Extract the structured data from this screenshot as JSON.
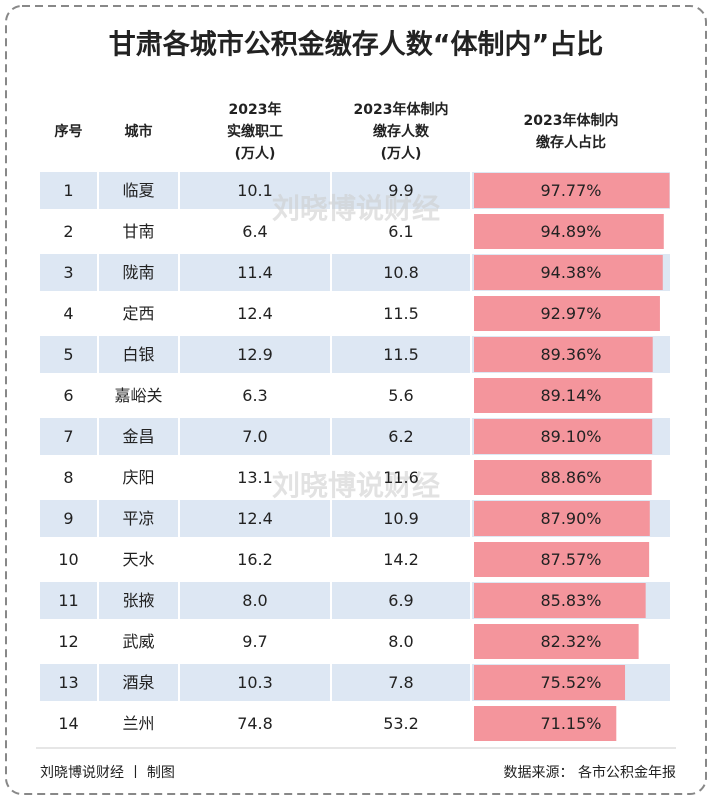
{
  "title": "甘肃各城市公积金缴存人数“体制内”占比",
  "watermark": "刘晓博说财经",
  "table": {
    "headers": [
      [
        "序号"
      ],
      [
        "城市"
      ],
      [
        "2023年",
        "实缴职工",
        "(万人)"
      ],
      [
        "2023年体制内",
        "缴存人数",
        "(万人)"
      ],
      [
        "2023年体制内",
        "缴存人占比"
      ]
    ],
    "rows": [
      [
        1,
        "临夏",
        "10.1",
        "9.9",
        {
          "value": 97.77,
          "label": "97.77%"
        }
      ],
      [
        2,
        "甘南",
        "6.4",
        "6.1",
        {
          "value": 94.89,
          "label": "94.89%"
        }
      ],
      [
        3,
        "陇南",
        "11.4",
        "10.8",
        {
          "value": 94.38,
          "label": "94.38%"
        }
      ],
      [
        4,
        "定西",
        "12.4",
        "11.5",
        {
          "value": 92.97,
          "label": "92.97%"
        }
      ],
      [
        5,
        "白银",
        "12.9",
        "11.5",
        {
          "value": 89.36,
          "label": "89.36%"
        }
      ],
      [
        6,
        "嘉峪关",
        "6.3",
        "5.6",
        {
          "value": 89.14,
          "label": "89.14%"
        }
      ],
      [
        7,
        "金昌",
        "7.0",
        "6.2",
        {
          "value": 89.1,
          "label": "89.10%"
        }
      ],
      [
        8,
        "庆阳",
        "13.1",
        "11.6",
        {
          "value": 88.86,
          "label": "88.86%"
        }
      ],
      [
        9,
        "平凉",
        "12.4",
        "10.9",
        {
          "value": 87.9,
          "label": "87.90%"
        }
      ],
      [
        10,
        "天水",
        "16.2",
        "14.2",
        {
          "value": 87.57,
          "label": "87.57%"
        }
      ],
      [
        11,
        "张掖",
        "8.0",
        "6.9",
        {
          "value": 85.83,
          "label": "85.83%"
        }
      ],
      [
        12,
        "武威",
        "9.7",
        "8.0",
        {
          "value": 82.32,
          "label": "82.32%"
        }
      ],
      [
        13,
        "酒泉",
        "10.3",
        "7.8",
        {
          "value": 75.52,
          "label": "75.52%"
        }
      ],
      [
        14,
        "兰州",
        "74.8",
        "53.2",
        {
          "value": 71.15,
          "label": "71.15%"
        }
      ]
    ]
  },
  "footer": {
    "left": "刘晓博说财经 丨 制图",
    "right": "数据来源： 各市公积金年报"
  }
}
